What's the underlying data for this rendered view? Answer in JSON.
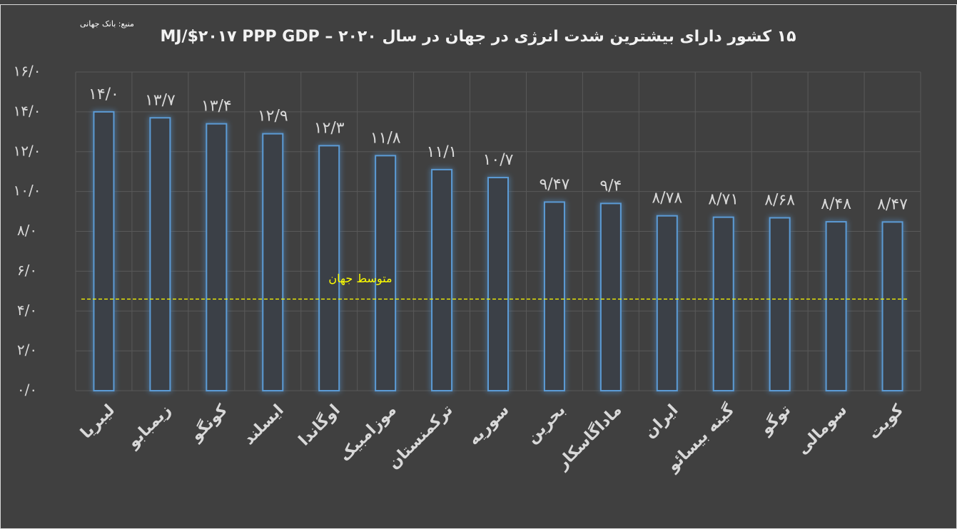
{
  "chart_data": {
    "type": "bar",
    "title": "۱۵ کشور دارای بیشترین شدت انرژی در جهان در سال ۲۰۲۰ – MJ/$۲۰۱۷ PPP GDP",
    "source": "منبع: بانک جهانی",
    "categories": [
      "لیبریا",
      "زیمبابو",
      "کونگو",
      "ایسلند",
      "اوگاندا",
      "موزامبیک",
      "ترکمنستان",
      "سوریه",
      "بحرین",
      "ماداگاسکار",
      "ایران",
      "گینه بیسائو",
      "توگو",
      "سومالی",
      "کویت"
    ],
    "values": [
      14.0,
      13.7,
      13.4,
      12.9,
      12.3,
      11.8,
      11.1,
      10.7,
      9.47,
      9.4,
      8.78,
      8.71,
      8.68,
      8.48,
      8.47
    ],
    "value_labels": [
      "۱۴/۰",
      "۱۳/۷",
      "۱۳/۴",
      "۱۲/۹",
      "۱۲/۳",
      "۱۱/۸",
      "۱۱/۱",
      "۱۰/۷",
      "۹/۴۷",
      "۹/۴",
      "۸/۷۸",
      "۸/۷۱",
      "۸/۶۸",
      "۸/۴۸",
      "۸/۴۷"
    ],
    "color": "#5b9bd5",
    "ylim": [
      0,
      16
    ],
    "yticks": [
      {
        "value": 0,
        "label": "۰/۰"
      },
      {
        "value": 2,
        "label": "۲/۰"
      },
      {
        "value": 4,
        "label": "۴/۰"
      },
      {
        "value": 6,
        "label": "۶/۰"
      },
      {
        "value": 8,
        "label": "۸/۰"
      },
      {
        "value": 10,
        "label": "۱۰/۰"
      },
      {
        "value": 12,
        "label": "۱۲/۰"
      },
      {
        "value": 14,
        "label": "۱۴/۰"
      },
      {
        "value": 16,
        "label": "۱۶/۰"
      }
    ],
    "grid": true,
    "reference_line": {
      "label": "متوسط جهان",
      "value": 4.6,
      "color": "#ffff00"
    }
  }
}
